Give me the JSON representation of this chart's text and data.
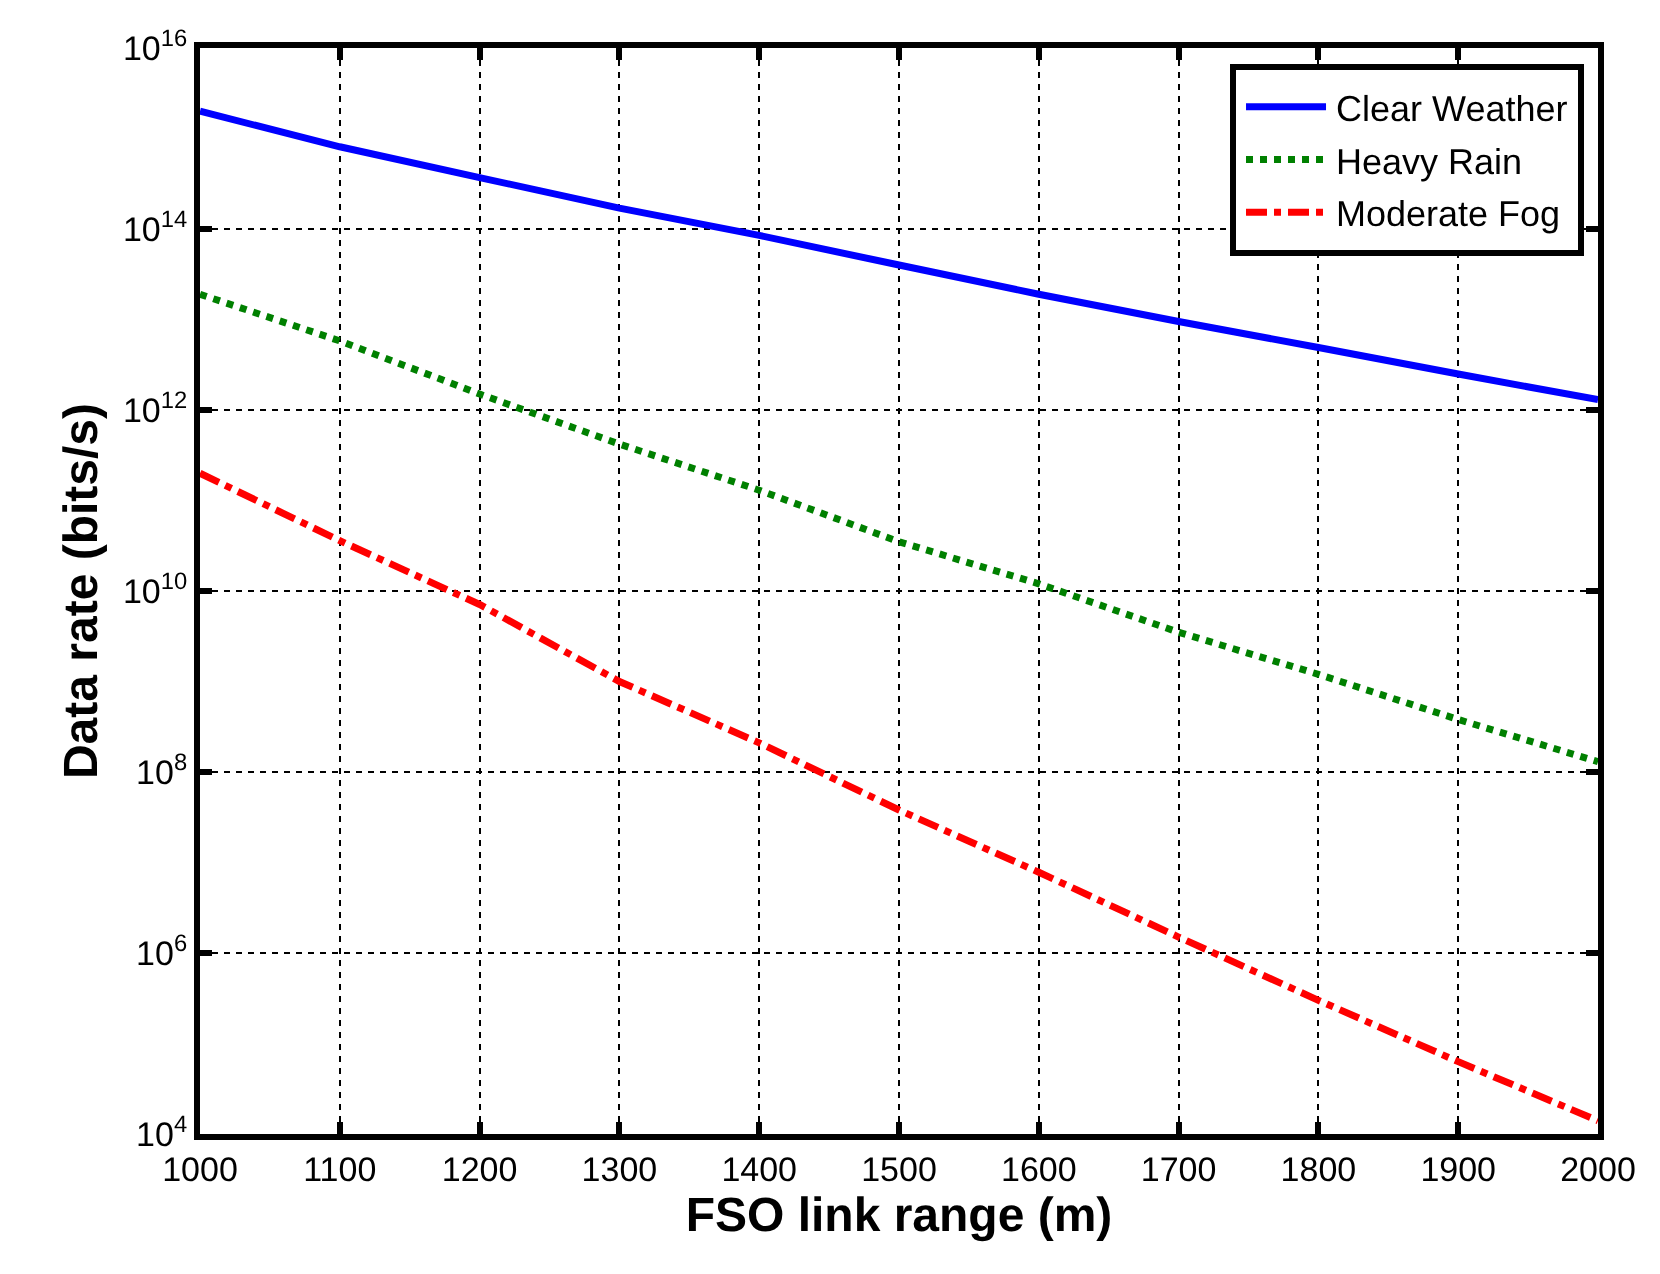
{
  "chart_data": {
    "type": "line",
    "xlabel": "FSO link range (m)",
    "ylabel": "Data rate (bits/s)",
    "x": [
      1000,
      1100,
      1200,
      1300,
      1400,
      1500,
      1600,
      1700,
      1800,
      1900,
      2000
    ],
    "series": [
      {
        "name": "Clear Weather",
        "color": "#0000ff",
        "line_style": "solid",
        "values": [
          2000000000000000.0,
          810000000000000.0,
          370000000000000.0,
          170000000000000.0,
          85000000000000.0,
          40000000000000.0,
          19000000000000.0,
          9500000000000.0,
          4900000000000.0,
          2500000000000.0,
          1300000000000.0
        ]
      },
      {
        "name": "Heavy Rain",
        "color": "#008000",
        "line_style": "dotted",
        "values": [
          19000000000000.0,
          5800000000000.0,
          1500000000000.0,
          420000000000.0,
          130000000000.0,
          35000000000.0,
          12000000000.0,
          3500000000.0,
          1200000000.0,
          380000000.0,
          130000000.0
        ]
      },
      {
        "name": "Moderate Fog",
        "color": "#ff0000",
        "line_style": "dashdot",
        "values": [
          200000000000.0,
          36000000000.0,
          7100000000.0,
          1000000000.0,
          210000000.0,
          38000000.0,
          7800000.0,
          1500000.0,
          300000.0,
          63000.0,
          14000.0
        ]
      }
    ],
    "log": "y",
    "xlim": [
      1000,
      2000
    ],
    "ylim": [
      10000.0,
      1e+16
    ],
    "xticks": [
      1000,
      1100,
      1200,
      1300,
      1400,
      1500,
      1600,
      1700,
      1800,
      1900,
      2000
    ],
    "yticks": [
      {
        "value": 10000.0,
        "label": "10$^{4}$"
      },
      {
        "value": 1000000.0,
        "label": "10$^{6}$"
      },
      {
        "value": 100000000.0,
        "label": "10$^{8}$"
      },
      {
        "value": 10000000000.0,
        "label": "10$^{10}$"
      },
      {
        "value": 1000000000000.0,
        "label": "10$^{12}$"
      },
      {
        "value": 100000000000000.0,
        "label": "10$^{14}$"
      },
      {
        "value": 1e+16,
        "label": "10$^{16}$"
      }
    ],
    "grid": true,
    "legend": "top right"
  }
}
